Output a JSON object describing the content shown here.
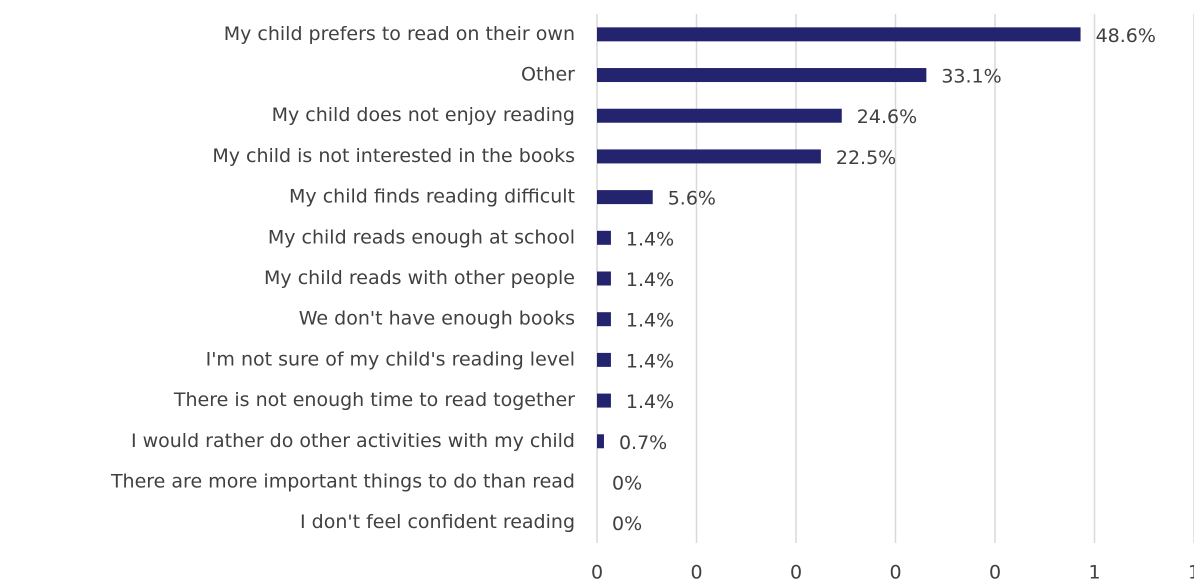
{
  "chart_data": {
    "type": "bar",
    "orientation": "horizontal",
    "categories": [
      "My child prefers to read on their own",
      "Other",
      "My child does not enjoy reading",
      "My child is not interested in the books",
      "My child finds reading difficult",
      "My child reads enough at school",
      "My child reads with other people",
      "We don't have enough books",
      "I'm not sure of my child's reading level",
      "There is not enough time to read together",
      "I would rather do other activities with my child",
      "There are more important things to do than read",
      "I don't feel confident reading"
    ],
    "values": [
      0.486,
      0.331,
      0.246,
      0.225,
      0.056,
      0.014,
      0.014,
      0.014,
      0.014,
      0.014,
      0.007,
      0,
      0
    ],
    "value_labels": [
      "48.6%",
      "33.1%",
      "24.6%",
      "22.5%",
      "5.6%",
      "1.4%",
      "1.4%",
      "1.4%",
      "1.4%",
      "1.4%",
      "0.7%",
      "0%",
      "0%"
    ],
    "color": "#23236e",
    "xlim": [
      0,
      0.6
    ],
    "xticks": [
      0,
      {
        "value": 0.1,
        "label": "0"
      },
      {
        "value": 0.2,
        "label": "0"
      },
      {
        "value": 0.3,
        "label": "0"
      },
      {
        "value": 0.4,
        "label": "0"
      },
      {
        "value": 0.5,
        "label": "1"
      },
      {
        "value": 0.6,
        "label": "1"
      }
    ],
    "grid": true
  }
}
